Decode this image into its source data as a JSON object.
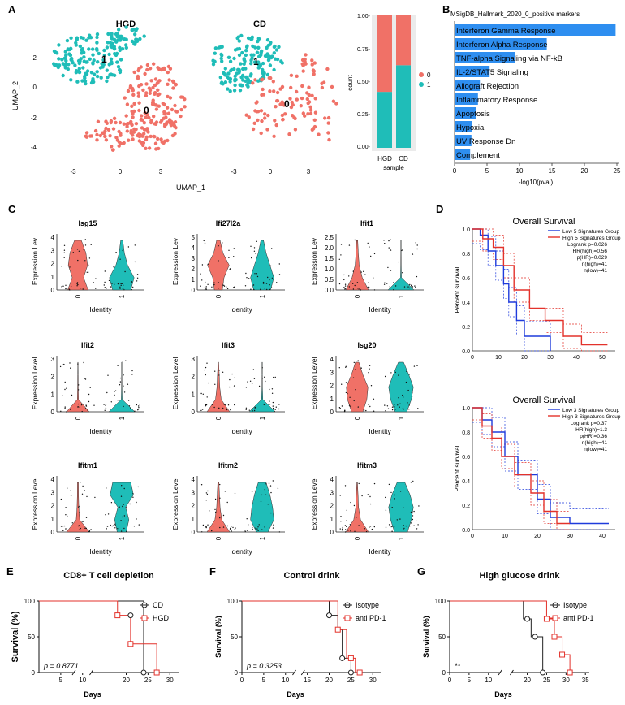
{
  "colors": {
    "group0": "#f07167",
    "group1": "#1fbdb8",
    "bar": "#2e8ef0",
    "low": "#1f3bdc",
    "high": "#e3322b"
  },
  "panel_labels": {
    "A": "A",
    "B": "B",
    "C": "C",
    "D": "D",
    "E": "E",
    "F": "F",
    "G": "G"
  },
  "umap": {
    "titles": [
      "HGD",
      "CD"
    ],
    "xlabel": "UMAP_1",
    "ylabel": "UMAP_2",
    "yticks": [
      "2",
      "0",
      "-2",
      "-4"
    ],
    "xticks": [
      "-3",
      "0",
      "3"
    ],
    "cluster_labels": [
      "1",
      "0"
    ]
  },
  "stacked": {
    "yticks": [
      "1.00-",
      "0.75-",
      "0.50-",
      "0.25-",
      "0.00-"
    ],
    "ylabel": "count",
    "xlabel": "sample",
    "categories": [
      "HGD",
      "CD"
    ],
    "legend": [
      "0",
      "1"
    ]
  },
  "chart_data": [
    {
      "type": "bar",
      "id": "B",
      "title": "MSigDB_Hallmark_2020_0_positive markers",
      "xlabel": "-log10(pval)",
      "xticks": [
        "0",
        "5",
        "10",
        "15",
        "20",
        "25"
      ],
      "xlim": [
        0,
        25
      ],
      "categories": [
        "Interferon Gamma Response",
        "Interferon Alpha Response",
        "TNF-alpha Signaling via NF-kB",
        "IL-2/STAT5 Signaling",
        "Allograft Rejection",
        "Inflammatory Response",
        "Apoptosis",
        "Hypoxia",
        "UV Response Dn",
        "Complement"
      ],
      "values": [
        24.8,
        14.2,
        9.3,
        5.4,
        3.9,
        3.6,
        3.3,
        2.7,
        2.6,
        2.4
      ]
    },
    {
      "type": "bar",
      "id": "A-stacked",
      "ylabel": "count",
      "categories": [
        "HGD",
        "CD"
      ],
      "series": [
        {
          "name": "0",
          "values": [
            0.58,
            0.38
          ]
        },
        {
          "name": "1",
          "values": [
            0.42,
            0.62
          ]
        }
      ]
    }
  ],
  "violins": {
    "xlabel": "Identity",
    "ticks": [
      "0",
      "1"
    ],
    "items": [
      {
        "gene": "Isg15",
        "ylabel": "Expression Lev",
        "yticks": [
          "4",
          "3",
          "2",
          "1",
          "0"
        ]
      },
      {
        "gene": "Ifi27l2a",
        "ylabel": "Expression Lev",
        "yticks": [
          "5",
          "4",
          "3",
          "2",
          "1",
          "0"
        ]
      },
      {
        "gene": "Ifit1",
        "ylabel": "Expression Lev",
        "yticks": [
          "2.5",
          "2.0",
          "1.5",
          "1.0",
          "0.5",
          "0.0"
        ]
      },
      {
        "gene": "Ifit2",
        "ylabel": "Expression Level",
        "yticks": [
          "3",
          "2",
          "1",
          "0"
        ]
      },
      {
        "gene": "Ifit3",
        "ylabel": "Expression Level",
        "yticks": [
          "3",
          "2",
          "1",
          "0"
        ]
      },
      {
        "gene": "Isg20",
        "ylabel": "Expression Level",
        "yticks": [
          "4",
          "3",
          "2",
          "1",
          "0"
        ]
      },
      {
        "gene": "Ifitm1",
        "ylabel": "Expression Level",
        "yticks": [
          "4",
          "3",
          "2",
          "1",
          "0"
        ]
      },
      {
        "gene": "Ifitm2",
        "ylabel": "Expression Level",
        "yticks": [
          "4",
          "3",
          "2",
          "1",
          "0"
        ]
      },
      {
        "gene": "Ifitm3",
        "ylabel": "Expression Level",
        "yticks": [
          "4",
          "3",
          "2",
          "1",
          "0"
        ]
      }
    ]
  },
  "survival": [
    {
      "title": "Overall Survival",
      "ylabel": "Percent survival",
      "yticks": [
        "1.0",
        "0.8",
        "0.6",
        "0.4",
        "0.2",
        "0.0"
      ],
      "xticks": [
        "0",
        "10",
        "20",
        "30",
        "40",
        "50"
      ],
      "legend": [
        "Low 5 Signatures Group",
        "High 5 Signatures Group"
      ],
      "stats": [
        "Logrank p=0.026",
        "HR(high)=0.56",
        "p(HR)=0.029",
        "n(high)=41",
        "n(low)=41"
      ]
    },
    {
      "title": "Overall Survival",
      "ylabel": "Percent survival",
      "yticks": [
        "1.0",
        "0.8",
        "0.6",
        "0.4",
        "0.2",
        "0.0"
      ],
      "xticks": [
        "0",
        "10",
        "20",
        "30",
        "40"
      ],
      "legend": [
        "Low 3 Signatures Group",
        "High 3 Signatures Group"
      ],
      "stats": [
        "Logrank p=0.37",
        "HR(high)=1.3",
        "p(HR)=0.36",
        "n(high)=41",
        "n(low)=41"
      ]
    }
  ],
  "km": [
    {
      "title": "CD8+ T cell depletion",
      "ylabel": "Survival (%)",
      "xlabel": "Days",
      "yticks": [
        "100",
        "50",
        "0"
      ],
      "xticks": [
        "5",
        "10",
        "20",
        "25",
        "30"
      ],
      "legend": [
        "CD",
        "HGD"
      ],
      "pvalue": "p = 0.8771"
    },
    {
      "title": "Control drink",
      "ylabel": "Survival (%)",
      "xlabel": "Days",
      "yticks": [
        "100",
        "50",
        "0"
      ],
      "xticks": [
        "0",
        "5",
        "10",
        "15",
        "20",
        "25",
        "30"
      ],
      "legend": [
        "Isotype",
        "anti PD-1"
      ],
      "pvalue": "p = 0.3253"
    },
    {
      "title": "High glucose drink",
      "ylabel": "Survival (%)",
      "xlabel": "Days",
      "yticks": [
        "100",
        "50",
        "0"
      ],
      "xticks": [
        "0",
        "5",
        "10",
        "20",
        "25",
        "30",
        "35"
      ],
      "legend": [
        "Isotype",
        "anti PD-1"
      ],
      "pvalue": "**"
    }
  ]
}
